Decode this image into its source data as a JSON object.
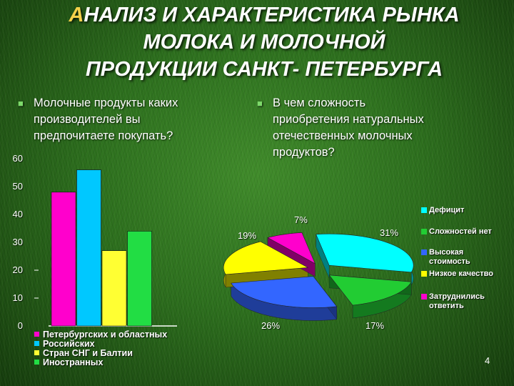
{
  "title": {
    "first_letter": "А",
    "line1_rest": "НАЛИЗ И ХАРАКТЕРИСТИКА РЫНКА",
    "line2": "МОЛОКА И МОЛОЧНОЙ",
    "line3": "ПРОДУКЦИИ САНКТ- ПЕТЕРБУРГА"
  },
  "left_question": {
    "line1": "Молочные продукты каких",
    "line2": "производителей вы",
    "line3": "предпочитаете покупать?"
  },
  "right_question": {
    "line1": "В чем сложность",
    "line2": "приобретения натуральных",
    "line3": "отечественных молочных",
    "line4": "продуктов?"
  },
  "page_number": "4",
  "chart_data": [
    {
      "type": "bar",
      "categories": [
        "Петербургских и областных",
        "Российских",
        "Стран СНГ и Балтии",
        "Иностранных"
      ],
      "values": [
        48,
        56,
        27,
        34
      ],
      "colors": [
        "#ff00cc",
        "#00c8ff",
        "#ffff33",
        "#22dd44"
      ],
      "ylim": [
        0,
        60
      ],
      "yticks": [
        "0",
        "10",
        "20",
        "30",
        "40",
        "50",
        "60"
      ],
      "legend_position": "bottom"
    },
    {
      "type": "pie",
      "categories": [
        "Дефицит",
        "Сложностей нет",
        "Высокая стоимость",
        "Низкое качество",
        "Затруднились ответить"
      ],
      "values": [
        31,
        17,
        26,
        19,
        7
      ],
      "labels": [
        "31%",
        "17%",
        "26%",
        "19%",
        "7%"
      ],
      "colors": [
        "#00ffff",
        "#22cc33",
        "#3366ff",
        "#ffff00",
        "#ff00cc"
      ],
      "legend_position": "right"
    }
  ]
}
